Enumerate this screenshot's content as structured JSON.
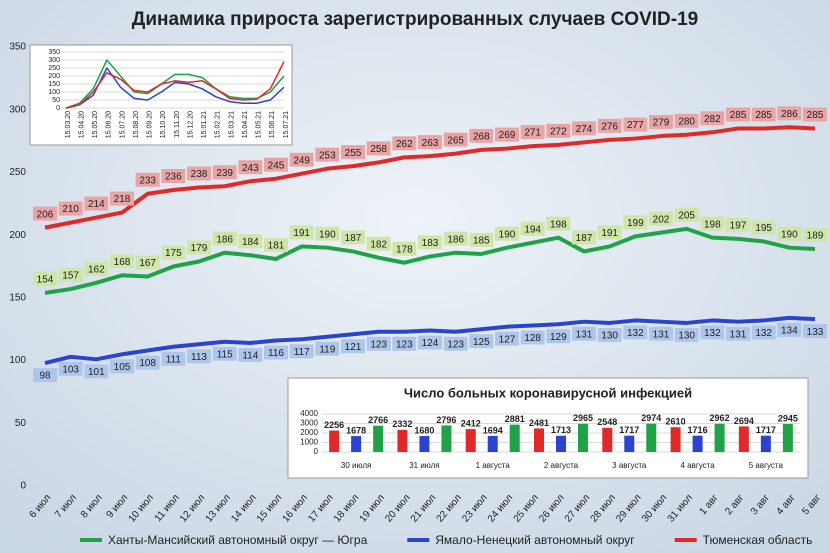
{
  "chart_data": [
    {
      "type": "line",
      "title": "Динамика прироста зарегистрированных случаев COVID-19",
      "categories": [
        "6 июл",
        "7 июл",
        "8 июл",
        "9 июл",
        "10 июл",
        "11 июл",
        "12 июл",
        "13 июл",
        "14 июл",
        "15 июл",
        "16 июл",
        "17 июл",
        "18 июл",
        "19 июл",
        "20 июл",
        "21 июл",
        "22 июл",
        "23 июл",
        "24 июл",
        "25 июл",
        "26 июл",
        "27 июл",
        "28 июл",
        "29 июл",
        "30 июл",
        "31 июл",
        "1 авг",
        "2 авг",
        "3 авг",
        "4 авг",
        "5 авг"
      ],
      "series": [
        {
          "name": "Ханты-Мансийский автономный округ — Югра",
          "color": "#1fa346",
          "label_fill": "#cfe6a8",
          "values": [
            154,
            157,
            162,
            168,
            167,
            175,
            179,
            186,
            184,
            181,
            191,
            190,
            187,
            182,
            178,
            183,
            186,
            185,
            190,
            194,
            198,
            187,
            191,
            199,
            202,
            205,
            198,
            197,
            195,
            190,
            189
          ]
        },
        {
          "name": "Ямало-Ненецкий автономный округ",
          "color": "#2a44d0",
          "label_fill": "#aec6ea",
          "values": [
            98,
            103,
            101,
            105,
            108,
            111,
            113,
            115,
            114,
            116,
            117,
            119,
            121,
            123,
            123,
            124,
            123,
            125,
            127,
            128,
            129,
            131,
            130,
            132,
            131,
            130,
            132,
            131,
            132,
            134,
            133
          ]
        },
        {
          "name": "Тюменская область",
          "color": "#e02a2a",
          "label_fill": "#e9a5a5",
          "values": [
            206,
            210,
            214,
            218,
            233,
            236,
            238,
            239,
            243,
            245,
            249,
            253,
            255,
            258,
            262,
            263,
            265,
            268,
            269,
            271,
            272,
            274,
            276,
            277,
            279,
            280,
            282,
            285,
            285,
            286,
            285
          ]
        }
      ],
      "ylim": [
        0,
        350
      ],
      "yticks": [
        0,
        50,
        100,
        150,
        200,
        250,
        300,
        350
      ],
      "grid": false,
      "legend": "bottom"
    },
    {
      "type": "line",
      "categories": [
        "15.03.20",
        "15.04.20",
        "15.05.20",
        "15.06.20",
        "15.07.20",
        "15.08.20",
        "15.09.20",
        "15.10.20",
        "15.11.20",
        "15.12.20",
        "15.01.21",
        "15.02.21",
        "15.03.21",
        "15.04.21",
        "15.05.21",
        "15.06.21",
        "15.07.21"
      ],
      "series": [
        {
          "color": "#1fa346",
          "values": [
            0,
            30,
            120,
            300,
            200,
            100,
            90,
            150,
            210,
            210,
            190,
            120,
            70,
            60,
            60,
            100,
            200
          ]
        },
        {
          "color": "#2a44d0",
          "values": [
            0,
            20,
            80,
            250,
            130,
            60,
            50,
            100,
            160,
            150,
            120,
            70,
            40,
            30,
            30,
            50,
            130
          ]
        },
        {
          "color": "#e02a2a",
          "values": [
            0,
            20,
            100,
            220,
            180,
            110,
            100,
            150,
            170,
            160,
            170,
            120,
            60,
            50,
            55,
            120,
            290
          ]
        }
      ],
      "ylim": [
        0,
        350
      ],
      "yticks": [
        0,
        50,
        100,
        150,
        200,
        250,
        300,
        350
      ],
      "grid": true
    },
    {
      "type": "bar",
      "title": "Число больных коронавирусной  инфекцией",
      "categories": [
        "30 июля",
        "31 июля",
        "1 августа",
        "2 августа",
        "3 августа",
        "4 августа",
        "5 августа"
      ],
      "series": [
        {
          "color": "#e02a2a",
          "values": [
            2256,
            2332,
            2412,
            2481,
            2548,
            2610,
            2694
          ]
        },
        {
          "color": "#2a44d0",
          "values": [
            1678,
            1680,
            1694,
            1713,
            1717,
            1716,
            1717
          ]
        },
        {
          "color": "#1fa346",
          "values": [
            2766,
            2796,
            2881,
            2965,
            2974,
            2962,
            2945
          ]
        }
      ],
      "ylim": [
        0,
        4000
      ],
      "yticks": [
        0,
        1000,
        2000,
        3000,
        4000
      ],
      "grid": true
    }
  ]
}
